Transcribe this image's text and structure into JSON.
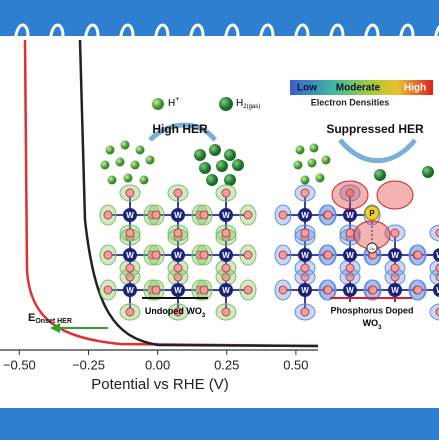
{
  "plot": {
    "xlabel": "Potential vs RHE (V)",
    "xlim": [
      -0.57,
      0.58
    ],
    "xticks": [
      {
        "value": -0.5,
        "label": "−0.50"
      },
      {
        "value": -0.25,
        "label": "−0.25"
      },
      {
        "value": 0,
        "label": "0.00"
      },
      {
        "value": 0.25,
        "label": "0.25"
      },
      {
        "value": 0.5,
        "label": "0.50"
      }
    ],
    "annotation": {
      "main": "E",
      "sub": "Onset HER"
    }
  },
  "legend": {
    "proton": {
      "main": "H",
      "sup": "+"
    },
    "hydrogen": {
      "main": "H",
      "sub": "2(gas)"
    },
    "colorbar": {
      "low": "Low",
      "moderate": "Moderate",
      "high": "High",
      "title": "Electron Densities"
    }
  },
  "panels": {
    "left": {
      "title": "High HER",
      "caption": {
        "main": "Undoped WO",
        "sub": "3"
      }
    },
    "right": {
      "title": "Suppressed HER",
      "caption_line1": "Phosphorus Doped",
      "caption_line2": {
        "main": "WO",
        "sub": "3"
      }
    }
  },
  "atoms": {
    "tungsten": "W",
    "phosphorus": "P",
    "oxygen": "O",
    "vacancy": "Ov"
  }
}
